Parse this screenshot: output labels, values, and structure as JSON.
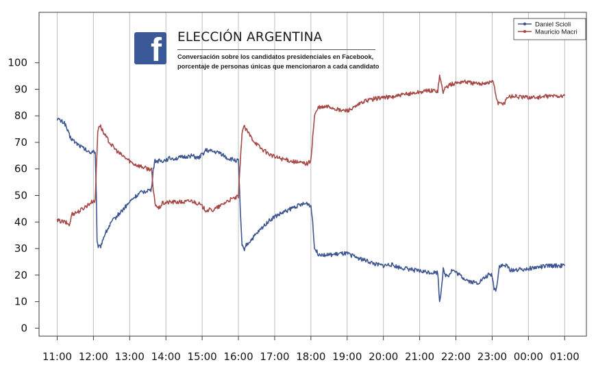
{
  "chart_data": {
    "type": "line",
    "title": "ELECCIÓN ARGENTINA",
    "subtitle_lines": [
      "Conversación sobre los candidatos presidenciales en Facebook,",
      "porcentaje de personas únicas que mencionaron a cada candidato"
    ],
    "xlabel": "",
    "ylabel": "",
    "x_tick_labels": [
      "11:00",
      "12:00",
      "13:00",
      "14:00",
      "15:00",
      "16:00",
      "17:00",
      "18:00",
      "19:00",
      "20:00",
      "21:00",
      "22:00",
      "23:00",
      "00:00",
      "01:00"
    ],
    "y_ticks": [
      0,
      10,
      20,
      30,
      40,
      50,
      60,
      70,
      80,
      90,
      100
    ],
    "ylim": [
      -3,
      119
    ],
    "xlim": [
      -0.5,
      14.6
    ],
    "grid": "vertical",
    "legend_position": "top-right",
    "series": [
      {
        "name": "Daniel Scioli",
        "color": "#3c5591",
        "points": [
          [
            0,
            79
          ],
          [
            0.1,
            78
          ],
          [
            0.2,
            77.5
          ],
          [
            0.3,
            74
          ],
          [
            0.35,
            72
          ],
          [
            0.5,
            70
          ],
          [
            0.7,
            68
          ],
          [
            0.9,
            66
          ],
          [
            1.0,
            67
          ],
          [
            1.05,
            66
          ],
          [
            1.08,
            50
          ],
          [
            1.1,
            32
          ],
          [
            1.15,
            30.5
          ],
          [
            1.2,
            31
          ],
          [
            1.3,
            35
          ],
          [
            1.5,
            40
          ],
          [
            1.7,
            43
          ],
          [
            1.9,
            46
          ],
          [
            2.1,
            49
          ],
          [
            2.3,
            51
          ],
          [
            2.5,
            52
          ],
          [
            2.6,
            52
          ],
          [
            2.65,
            60
          ],
          [
            2.7,
            63
          ],
          [
            2.9,
            63
          ],
          [
            3.1,
            64
          ],
          [
            3.3,
            64
          ],
          [
            3.5,
            64.5
          ],
          [
            3.7,
            65
          ],
          [
            3.9,
            64
          ],
          [
            4.1,
            67
          ],
          [
            4.3,
            66.5
          ],
          [
            4.5,
            66
          ],
          [
            4.7,
            64
          ],
          [
            5.0,
            63
          ],
          [
            5.05,
            45
          ],
          [
            5.1,
            31
          ],
          [
            5.15,
            29.5
          ],
          [
            5.2,
            31
          ],
          [
            5.4,
            34
          ],
          [
            5.6,
            37
          ],
          [
            5.8,
            40
          ],
          [
            6.0,
            42
          ],
          [
            6.3,
            44
          ],
          [
            6.6,
            46
          ],
          [
            6.9,
            47
          ],
          [
            7.0,
            46
          ],
          [
            7.05,
            40
          ],
          [
            7.1,
            30
          ],
          [
            7.2,
            28
          ],
          [
            7.5,
            27.5
          ],
          [
            7.8,
            28
          ],
          [
            8.0,
            28
          ],
          [
            8.2,
            27
          ],
          [
            8.4,
            26
          ],
          [
            8.6,
            25
          ],
          [
            8.8,
            24
          ],
          [
            9.0,
            23.5
          ],
          [
            9.2,
            24
          ],
          [
            9.4,
            23
          ],
          [
            9.6,
            22.5
          ],
          [
            9.8,
            22
          ],
          [
            10.0,
            21.5
          ],
          [
            10.3,
            21
          ],
          [
            10.5,
            21
          ],
          [
            10.55,
            10
          ],
          [
            10.6,
            15
          ],
          [
            10.65,
            22
          ],
          [
            10.7,
            20
          ],
          [
            10.8,
            20
          ],
          [
            10.9,
            22
          ],
          [
            11.0,
            21
          ],
          [
            11.2,
            19
          ],
          [
            11.4,
            17.5
          ],
          [
            11.6,
            17
          ],
          [
            11.8,
            19
          ],
          [
            11.9,
            20
          ],
          [
            12.0,
            20
          ],
          [
            12.05,
            15
          ],
          [
            12.1,
            14.5
          ],
          [
            12.15,
            18
          ],
          [
            12.2,
            23.5
          ],
          [
            12.4,
            23.5
          ],
          [
            12.5,
            22
          ],
          [
            12.7,
            22
          ],
          [
            13.0,
            22.5
          ],
          [
            13.3,
            23
          ],
          [
            13.6,
            23.5
          ],
          [
            14.0,
            23.5
          ]
        ]
      },
      {
        "name": "Mauricio Macri",
        "color": "#a54846",
        "points": [
          [
            0,
            40.5
          ],
          [
            0.2,
            40
          ],
          [
            0.35,
            39
          ],
          [
            0.4,
            43
          ],
          [
            0.6,
            44
          ],
          [
            0.8,
            46
          ],
          [
            1.0,
            48
          ],
          [
            1.05,
            48
          ],
          [
            1.08,
            60
          ],
          [
            1.12,
            74
          ],
          [
            1.15,
            76.5
          ],
          [
            1.2,
            76
          ],
          [
            1.3,
            73
          ],
          [
            1.5,
            69
          ],
          [
            1.7,
            66
          ],
          [
            1.9,
            64
          ],
          [
            2.1,
            62
          ],
          [
            2.3,
            61
          ],
          [
            2.5,
            60
          ],
          [
            2.6,
            60
          ],
          [
            2.65,
            52
          ],
          [
            2.7,
            47
          ],
          [
            2.8,
            45
          ],
          [
            2.9,
            47
          ],
          [
            3.1,
            47.5
          ],
          [
            3.3,
            47.5
          ],
          [
            3.5,
            47.5
          ],
          [
            3.7,
            48
          ],
          [
            3.9,
            47
          ],
          [
            4.1,
            44.5
          ],
          [
            4.3,
            44.5
          ],
          [
            4.5,
            46
          ],
          [
            4.7,
            48
          ],
          [
            5.0,
            49.5
          ],
          [
            5.05,
            62
          ],
          [
            5.1,
            74
          ],
          [
            5.15,
            76
          ],
          [
            5.2,
            75
          ],
          [
            5.4,
            71
          ],
          [
            5.6,
            68
          ],
          [
            5.8,
            66
          ],
          [
            6.0,
            64.5
          ],
          [
            6.3,
            63.5
          ],
          [
            6.6,
            62.5
          ],
          [
            6.9,
            62
          ],
          [
            7.0,
            63
          ],
          [
            7.05,
            72
          ],
          [
            7.1,
            80
          ],
          [
            7.2,
            83
          ],
          [
            7.5,
            83.5
          ],
          [
            7.8,
            82
          ],
          [
            8.0,
            82
          ],
          [
            8.2,
            83
          ],
          [
            8.4,
            85
          ],
          [
            8.6,
            86
          ],
          [
            8.8,
            86.5
          ],
          [
            9.0,
            87
          ],
          [
            9.2,
            87
          ],
          [
            9.4,
            87.5
          ],
          [
            9.6,
            88
          ],
          [
            9.8,
            88.5
          ],
          [
            10.0,
            89
          ],
          [
            10.3,
            89.5
          ],
          [
            10.5,
            89.5
          ],
          [
            10.55,
            95
          ],
          [
            10.6,
            92
          ],
          [
            10.65,
            89
          ],
          [
            10.7,
            90.5
          ],
          [
            10.9,
            92
          ],
          [
            11.2,
            93
          ],
          [
            11.4,
            92.5
          ],
          [
            11.6,
            92
          ],
          [
            11.8,
            92.5
          ],
          [
            11.9,
            92.5
          ],
          [
            12.0,
            93
          ],
          [
            12.05,
            92
          ],
          [
            12.1,
            88
          ],
          [
            12.15,
            85
          ],
          [
            12.2,
            84.5
          ],
          [
            12.35,
            85
          ],
          [
            12.4,
            87
          ],
          [
            12.6,
            87.5
          ],
          [
            12.8,
            87
          ],
          [
            13.0,
            87
          ],
          [
            13.3,
            87
          ],
          [
            13.6,
            87.5
          ],
          [
            14.0,
            87.5
          ]
        ]
      }
    ]
  },
  "icon": "facebook-f-icon"
}
